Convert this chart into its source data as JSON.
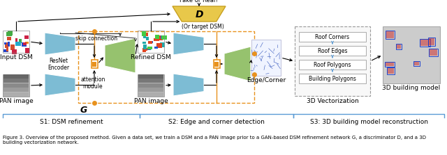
{
  "stage1_label": "S1: DSM refinement",
  "stage2_label": "S2: Edge and corner detection",
  "stage3_label": "S3: 3D building model reconstruction",
  "fake_or_real": "Fake or Real?",
  "or_target_dsm": "(Or target DSM)",
  "g_label": "G",
  "d_label": "D",
  "input_dsm": "Input DSM",
  "pan_image1": "PAN image",
  "pan_image2": "PAN image",
  "refined_dsm": "Refined DSM",
  "edge_corner": "Edge/Corner",
  "skip_connection": "skip connection",
  "attention_module": "attention\nmodule",
  "resnet_encoder": "ResNet\nEncoder",
  "vectorization_title": "3D Vectorization",
  "building_model": "3D building model",
  "vec_items": [
    "Roof Corners",
    "Roof Edges",
    "Roof Polygons",
    "Building Polygons"
  ],
  "bg_color": "#ffffff",
  "blue_trap": "#7dbcd4",
  "green_trap": "#96c26e",
  "orange_color": "#e8921e",
  "dashed_orange": "#e8921e",
  "bracket_color": "#5b9bd5",
  "d_box_color": "#e8c84a",
  "caption_fontsize": 5.0,
  "label_fontsize": 6.5,
  "stage_fontsize": 6.5
}
